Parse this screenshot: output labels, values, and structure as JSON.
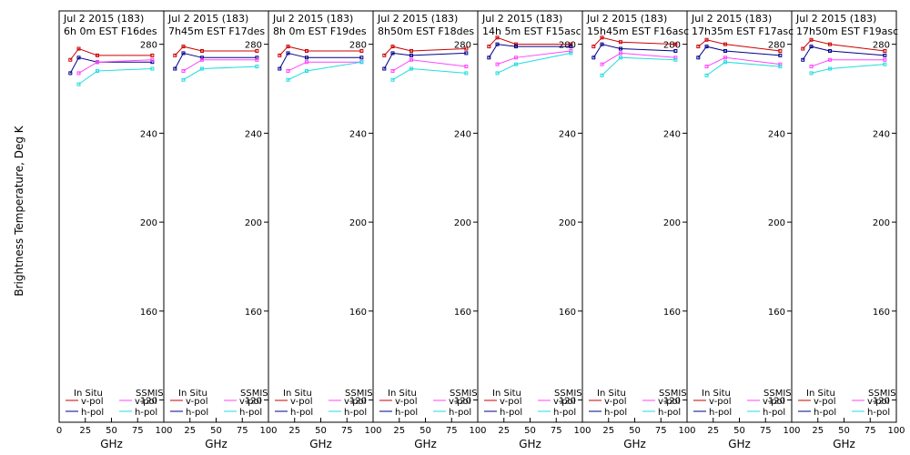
{
  "figure": {
    "ylabel": "Brightness Temperature, Deg K",
    "xlabel": "GHz",
    "colors": {
      "insitu_v": "#cc0000",
      "insitu_h": "#00008b",
      "ssmis_v": "#ff44ff",
      "ssmis_h": "#22dddd",
      "axes": "#000000"
    }
  },
  "legend": {
    "insitu_title": "In Situ",
    "ssmis_title": "SSMIS",
    "v_label": "v-pol",
    "h_label": "h-pol"
  },
  "chart_data": [
    {
      "type": "line",
      "title_line1": "Jul 2 2015 (183)",
      "title_line2": "6h 0m  EST F16des",
      "xlabel": "GHz",
      "ylabel": "Brightness Temperature, Deg K",
      "xlim": [
        0,
        100
      ],
      "ylim": [
        110,
        295
      ],
      "x_ticks": [
        0,
        25,
        50,
        75,
        100
      ],
      "y_ticks": [
        120,
        160,
        200,
        240,
        280
      ],
      "x": [
        10.7,
        18.7,
        36.5,
        89
      ],
      "series": [
        {
          "name": "In Situ v-pol",
          "values": [
            273,
            278,
            275,
            275
          ]
        },
        {
          "name": "In Situ h-pol",
          "values": [
            267,
            274,
            272,
            272
          ]
        },
        {
          "name": "SSMIS v-pol",
          "values": [
            null,
            267,
            272,
            273
          ]
        },
        {
          "name": "SSMIS h-pol",
          "values": [
            null,
            262,
            268,
            269
          ]
        }
      ]
    },
    {
      "type": "line",
      "title_line1": "Jul 2 2015 (183)",
      "title_line2": "7h45m  EST F17des",
      "xlabel": "GHz",
      "ylabel": "Brightness Temperature, Deg K",
      "xlim": [
        0,
        100
      ],
      "ylim": [
        110,
        295
      ],
      "x_ticks": [
        0,
        25,
        50,
        75,
        100
      ],
      "y_ticks": [
        120,
        160,
        200,
        240,
        280
      ],
      "x": [
        10.7,
        18.7,
        36.5,
        89
      ],
      "series": [
        {
          "name": "In Situ v-pol",
          "values": [
            275,
            279,
            277,
            277
          ]
        },
        {
          "name": "In Situ h-pol",
          "values": [
            269,
            276,
            274,
            274
          ]
        },
        {
          "name": "SSMIS v-pol",
          "values": [
            null,
            268,
            273,
            273
          ]
        },
        {
          "name": "SSMIS h-pol",
          "values": [
            null,
            264,
            269,
            270
          ]
        }
      ]
    },
    {
      "type": "line",
      "title_line1": "Jul 2 2015 (183)",
      "title_line2": "8h 0m  EST F19des",
      "xlabel": "GHz",
      "ylabel": "Brightness Temperature, Deg K",
      "xlim": [
        0,
        100
      ],
      "ylim": [
        110,
        295
      ],
      "x_ticks": [
        0,
        25,
        50,
        75,
        100
      ],
      "y_ticks": [
        120,
        160,
        200,
        240,
        280
      ],
      "x": [
        10.7,
        18.7,
        36.5,
        89
      ],
      "series": [
        {
          "name": "In Situ v-pol",
          "values": [
            275,
            279,
            277,
            277
          ]
        },
        {
          "name": "In Situ h-pol",
          "values": [
            269,
            276,
            274,
            274
          ]
        },
        {
          "name": "SSMIS v-pol",
          "values": [
            null,
            268,
            272,
            272
          ]
        },
        {
          "name": "SSMIS h-pol",
          "values": [
            null,
            264,
            268,
            272
          ]
        }
      ]
    },
    {
      "type": "line",
      "title_line1": "Jul 2 2015 (183)",
      "title_line2": "8h50m  EST F18des",
      "xlabel": "GHz",
      "ylabel": "Brightness Temperature, Deg K",
      "xlim": [
        0,
        100
      ],
      "ylim": [
        110,
        295
      ],
      "x_ticks": [
        0,
        25,
        50,
        75,
        100
      ],
      "y_ticks": [
        120,
        160,
        200,
        240,
        280
      ],
      "x": [
        10.7,
        18.7,
        36.5,
        89
      ],
      "series": [
        {
          "name": "In Situ v-pol",
          "values": [
            275,
            279,
            277,
            278
          ]
        },
        {
          "name": "In Situ h-pol",
          "values": [
            269,
            276,
            275,
            276
          ]
        },
        {
          "name": "SSMIS v-pol",
          "values": [
            null,
            268,
            273,
            270
          ]
        },
        {
          "name": "SSMIS h-pol",
          "values": [
            null,
            264,
            269,
            267
          ]
        }
      ]
    },
    {
      "type": "line",
      "title_line1": "Jul 2 2015 (183)",
      "title_line2": "14h 5m  EST F15asc",
      "xlabel": "GHz",
      "ylabel": "Brightness Temperature, Deg K",
      "xlim": [
        0,
        100
      ],
      "ylim": [
        110,
        295
      ],
      "x_ticks": [
        0,
        25,
        50,
        75,
        100
      ],
      "y_ticks": [
        120,
        160,
        200,
        240,
        280
      ],
      "x": [
        10.7,
        18.7,
        36.5,
        89
      ],
      "series": [
        {
          "name": "In Situ v-pol",
          "values": [
            279,
            283,
            280,
            280
          ]
        },
        {
          "name": "In Situ h-pol",
          "values": [
            274,
            280,
            279,
            279
          ]
        },
        {
          "name": "SSMIS v-pol",
          "values": [
            null,
            271,
            274,
            277
          ]
        },
        {
          "name": "SSMIS h-pol",
          "values": [
            null,
            267,
            271,
            276
          ]
        }
      ]
    },
    {
      "type": "line",
      "title_line1": "Jul 2 2015 (183)",
      "title_line2": "15h45m  EST F16asc",
      "xlabel": "GHz",
      "ylabel": "Brightness Temperature, Deg K",
      "xlim": [
        0,
        100
      ],
      "ylim": [
        110,
        295
      ],
      "x_ticks": [
        0,
        25,
        50,
        75,
        100
      ],
      "y_ticks": [
        120,
        160,
        200,
        240,
        280
      ],
      "x": [
        10.7,
        18.7,
        36.5,
        89
      ],
      "series": [
        {
          "name": "In Situ v-pol",
          "values": [
            279,
            283,
            281,
            280
          ]
        },
        {
          "name": "In Situ h-pol",
          "values": [
            274,
            280,
            278,
            277
          ]
        },
        {
          "name": "SSMIS v-pol",
          "values": [
            null,
            271,
            276,
            274
          ]
        },
        {
          "name": "SSMIS h-pol",
          "values": [
            null,
            266,
            274,
            273
          ]
        }
      ]
    },
    {
      "type": "line",
      "title_line1": "Jul 2 2015 (183)",
      "title_line2": "17h35m  EST F17asc",
      "xlabel": "GHz",
      "ylabel": "Brightness Temperature, Deg K",
      "xlim": [
        0,
        100
      ],
      "ylim": [
        110,
        295
      ],
      "x_ticks": [
        0,
        25,
        50,
        75,
        100
      ],
      "y_ticks": [
        120,
        160,
        200,
        240,
        280
      ],
      "x": [
        10.7,
        18.7,
        36.5,
        89
      ],
      "series": [
        {
          "name": "In Situ v-pol",
          "values": [
            279,
            282,
            280,
            277
          ]
        },
        {
          "name": "In Situ h-pol",
          "values": [
            274,
            279,
            277,
            275
          ]
        },
        {
          "name": "SSMIS v-pol",
          "values": [
            null,
            270,
            274,
            271
          ]
        },
        {
          "name": "SSMIS h-pol",
          "values": [
            null,
            266,
            272,
            270
          ]
        }
      ]
    },
    {
      "type": "line",
      "title_line1": "Jul 2 2015 (183)",
      "title_line2": "17h50m  EST F19asc",
      "xlabel": "GHz",
      "ylabel": "Brightness Temperature, Deg K",
      "xlim": [
        0,
        100
      ],
      "ylim": [
        110,
        295
      ],
      "x_ticks": [
        0,
        25,
        50,
        75,
        100
      ],
      "y_ticks": [
        120,
        160,
        200,
        240,
        280
      ],
      "x": [
        10.7,
        18.7,
        36.5,
        89
      ],
      "series": [
        {
          "name": "In Situ v-pol",
          "values": [
            278,
            282,
            280,
            277
          ]
        },
        {
          "name": "In Situ h-pol",
          "values": [
            273,
            279,
            277,
            275
          ]
        },
        {
          "name": "SSMIS v-pol",
          "values": [
            null,
            270,
            273,
            273
          ]
        },
        {
          "name": "SSMIS h-pol",
          "values": [
            null,
            267,
            269,
            271
          ]
        }
      ]
    }
  ]
}
